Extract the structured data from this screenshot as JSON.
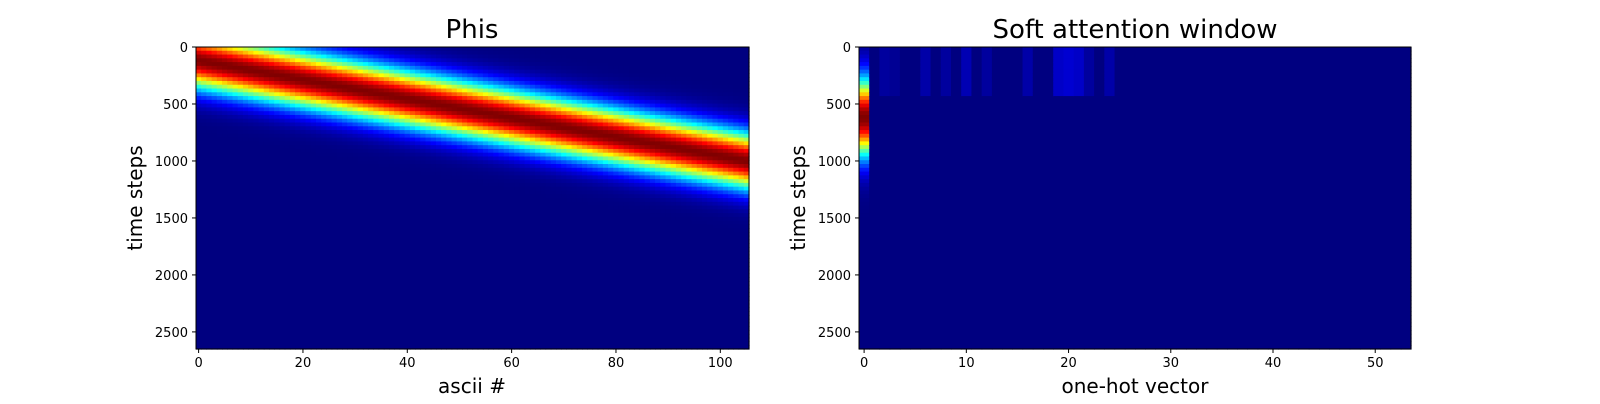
{
  "chart_data": [
    {
      "type": "heatmap",
      "title": "Phis",
      "xlabel": "ascii #",
      "ylabel": "time steps",
      "colormap": "jet",
      "x_ticks": [
        0,
        20,
        40,
        60,
        80,
        100
      ],
      "y_ticks": [
        0,
        500,
        1000,
        1500,
        2000,
        2500
      ],
      "xlim": [
        -0.5,
        105.5
      ],
      "ylim": [
        2650,
        0
      ],
      "n_columns": 106,
      "band": {
        "description": "diagonal gaussian ridge",
        "start": {
          "x": 0,
          "y": 120
        },
        "end": {
          "x": 105,
          "y": 1000
        },
        "width_steps": 240,
        "peak_value": 1.0
      }
    },
    {
      "type": "heatmap",
      "title": "Soft attention window",
      "xlabel": "one-hot vector",
      "ylabel": "time steps",
      "colormap": "jet",
      "x_ticks": [
        0,
        10,
        20,
        30,
        40,
        50
      ],
      "y_ticks": [
        0,
        500,
        1000,
        1500,
        2000,
        2500
      ],
      "xlim": [
        -0.5,
        53.5
      ],
      "ylim": [
        2650,
        0
      ],
      "n_columns": 54,
      "active_column": {
        "x": 0,
        "center_y": 620,
        "width_steps": 330,
        "peak_value": 1.0
      },
      "faint_columns": [
        {
          "x": 2,
          "value": 0.03
        },
        {
          "x": 3,
          "value": 0.02
        },
        {
          "x": 6,
          "value": 0.04
        },
        {
          "x": 8,
          "value": 0.03
        },
        {
          "x": 10,
          "value": 0.05
        },
        {
          "x": 12,
          "value": 0.03
        },
        {
          "x": 16,
          "value": 0.04
        },
        {
          "x": 19,
          "value": 0.07
        },
        {
          "x": 20,
          "value": 0.08
        },
        {
          "x": 21,
          "value": 0.07
        },
        {
          "x": 22,
          "value": 0.03
        },
        {
          "x": 24,
          "value": 0.04
        }
      ]
    }
  ]
}
